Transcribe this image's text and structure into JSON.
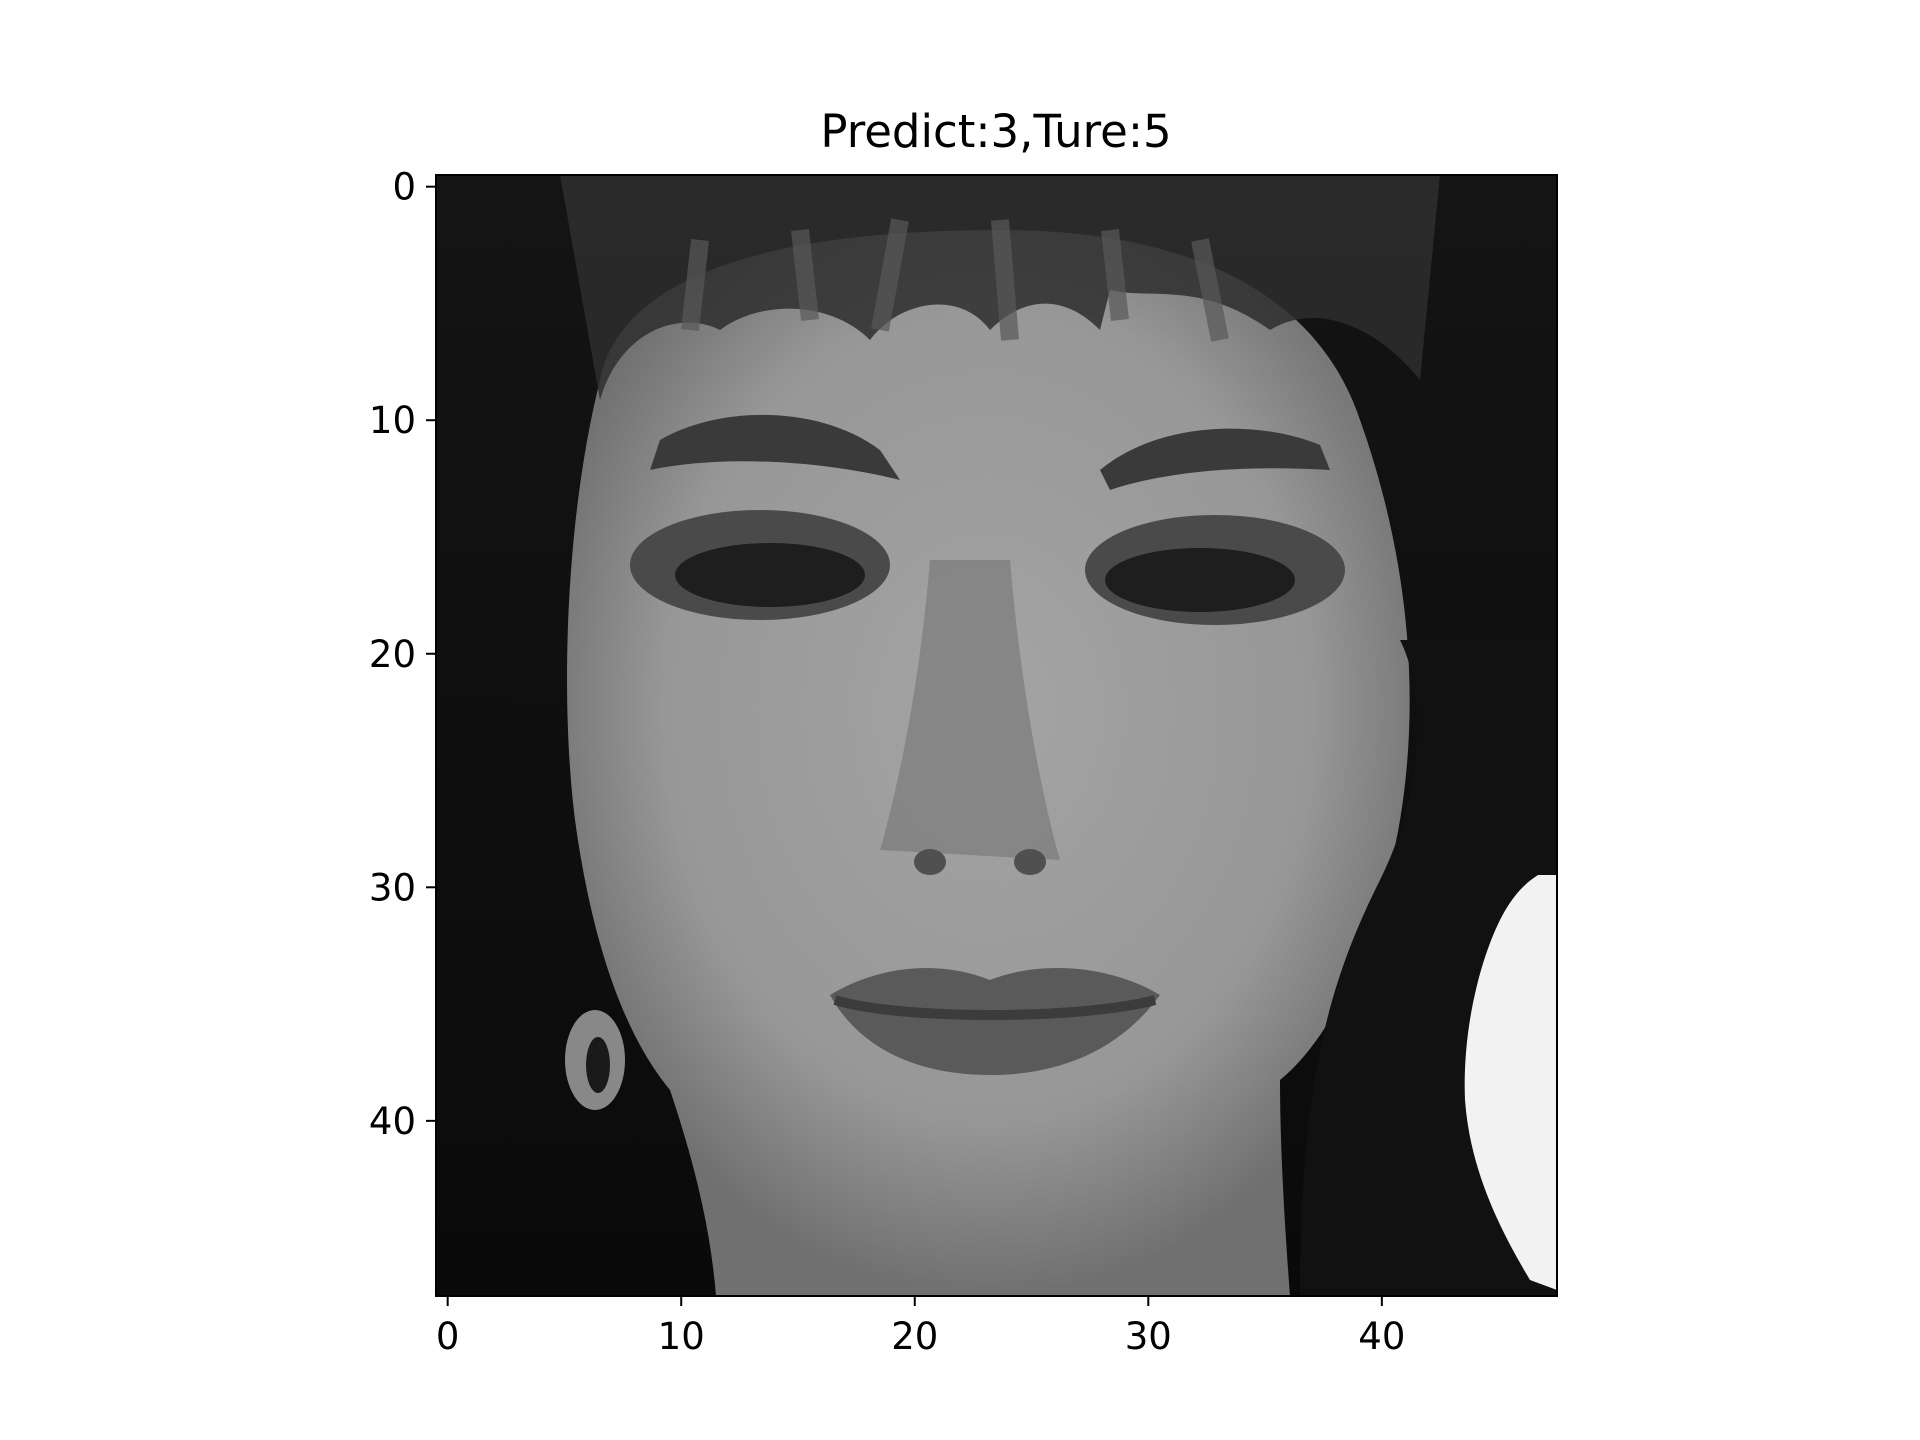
{
  "chart_data": {
    "type": "heatmap",
    "title": "Predict:3,Ture:5",
    "xlabel": "",
    "ylabel": "",
    "colormap": "gray",
    "image_shape": [
      48,
      48
    ],
    "xlim": [
      -0.5,
      47.5
    ],
    "ylim": [
      47.5,
      -0.5
    ],
    "x_ticks": [
      0,
      10,
      20,
      30,
      40
    ],
    "y_ticks": [
      0,
      10,
      20,
      30,
      40
    ],
    "x_tick_labels": [
      "0",
      "10",
      "20",
      "30",
      "40"
    ],
    "y_tick_labels": [
      "0",
      "10",
      "20",
      "30",
      "40"
    ],
    "grid": false,
    "image_description": "48x48 grayscale face crop"
  },
  "colors": {
    "frame": "#000000",
    "background": "#ffffff"
  }
}
